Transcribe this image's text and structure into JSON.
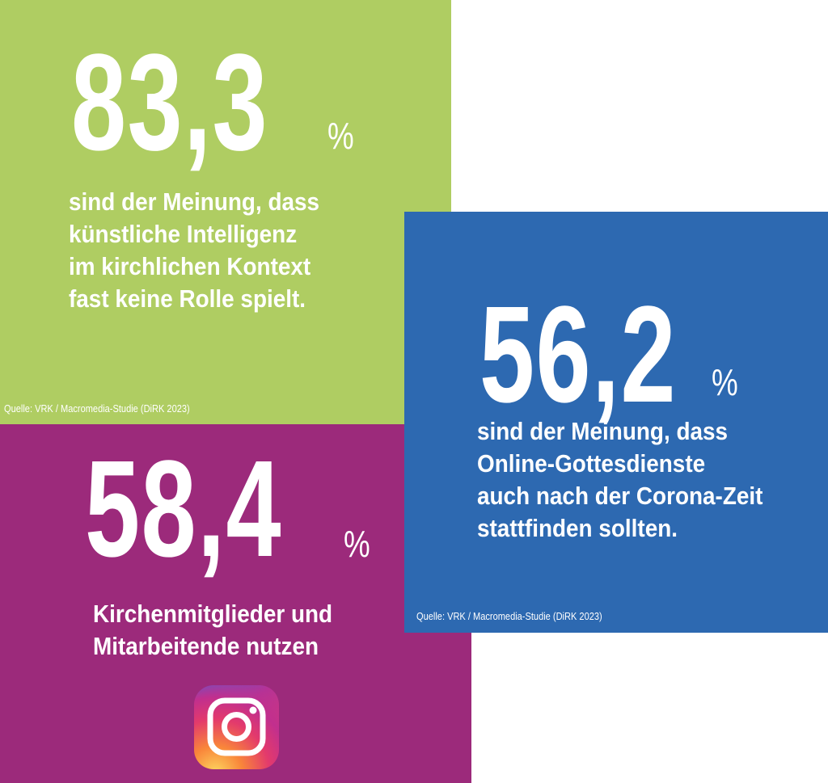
{
  "green": {
    "value": "83,3",
    "unit": "%",
    "lines": [
      "sind der Meinung, dass",
      "künstliche Intelligenz",
      "im kirchlichen Kontext",
      "fast keine Rolle spielt."
    ],
    "source": "Quelle: VRK / Macromedia-Studie (DiRK 2023)"
  },
  "blue": {
    "value": "56,2",
    "unit": "%",
    "lines": [
      "sind der Meinung, dass",
      "Online-Gottesdienste",
      "auch nach der Corona-Zeit",
      "stattfinden sollten."
    ],
    "source": "Quelle: VRK / Macromedia-Studie (DiRK 2023)"
  },
  "purple": {
    "value": "58,4",
    "unit": "%",
    "lines": [
      "Kirchenmitglieder und",
      "Mitarbeitende nutzen"
    ],
    "icon": "instagram-icon"
  },
  "colors": {
    "green": "#afcd62",
    "blue": "#2d69b1",
    "purple": "#9c2a7b"
  }
}
